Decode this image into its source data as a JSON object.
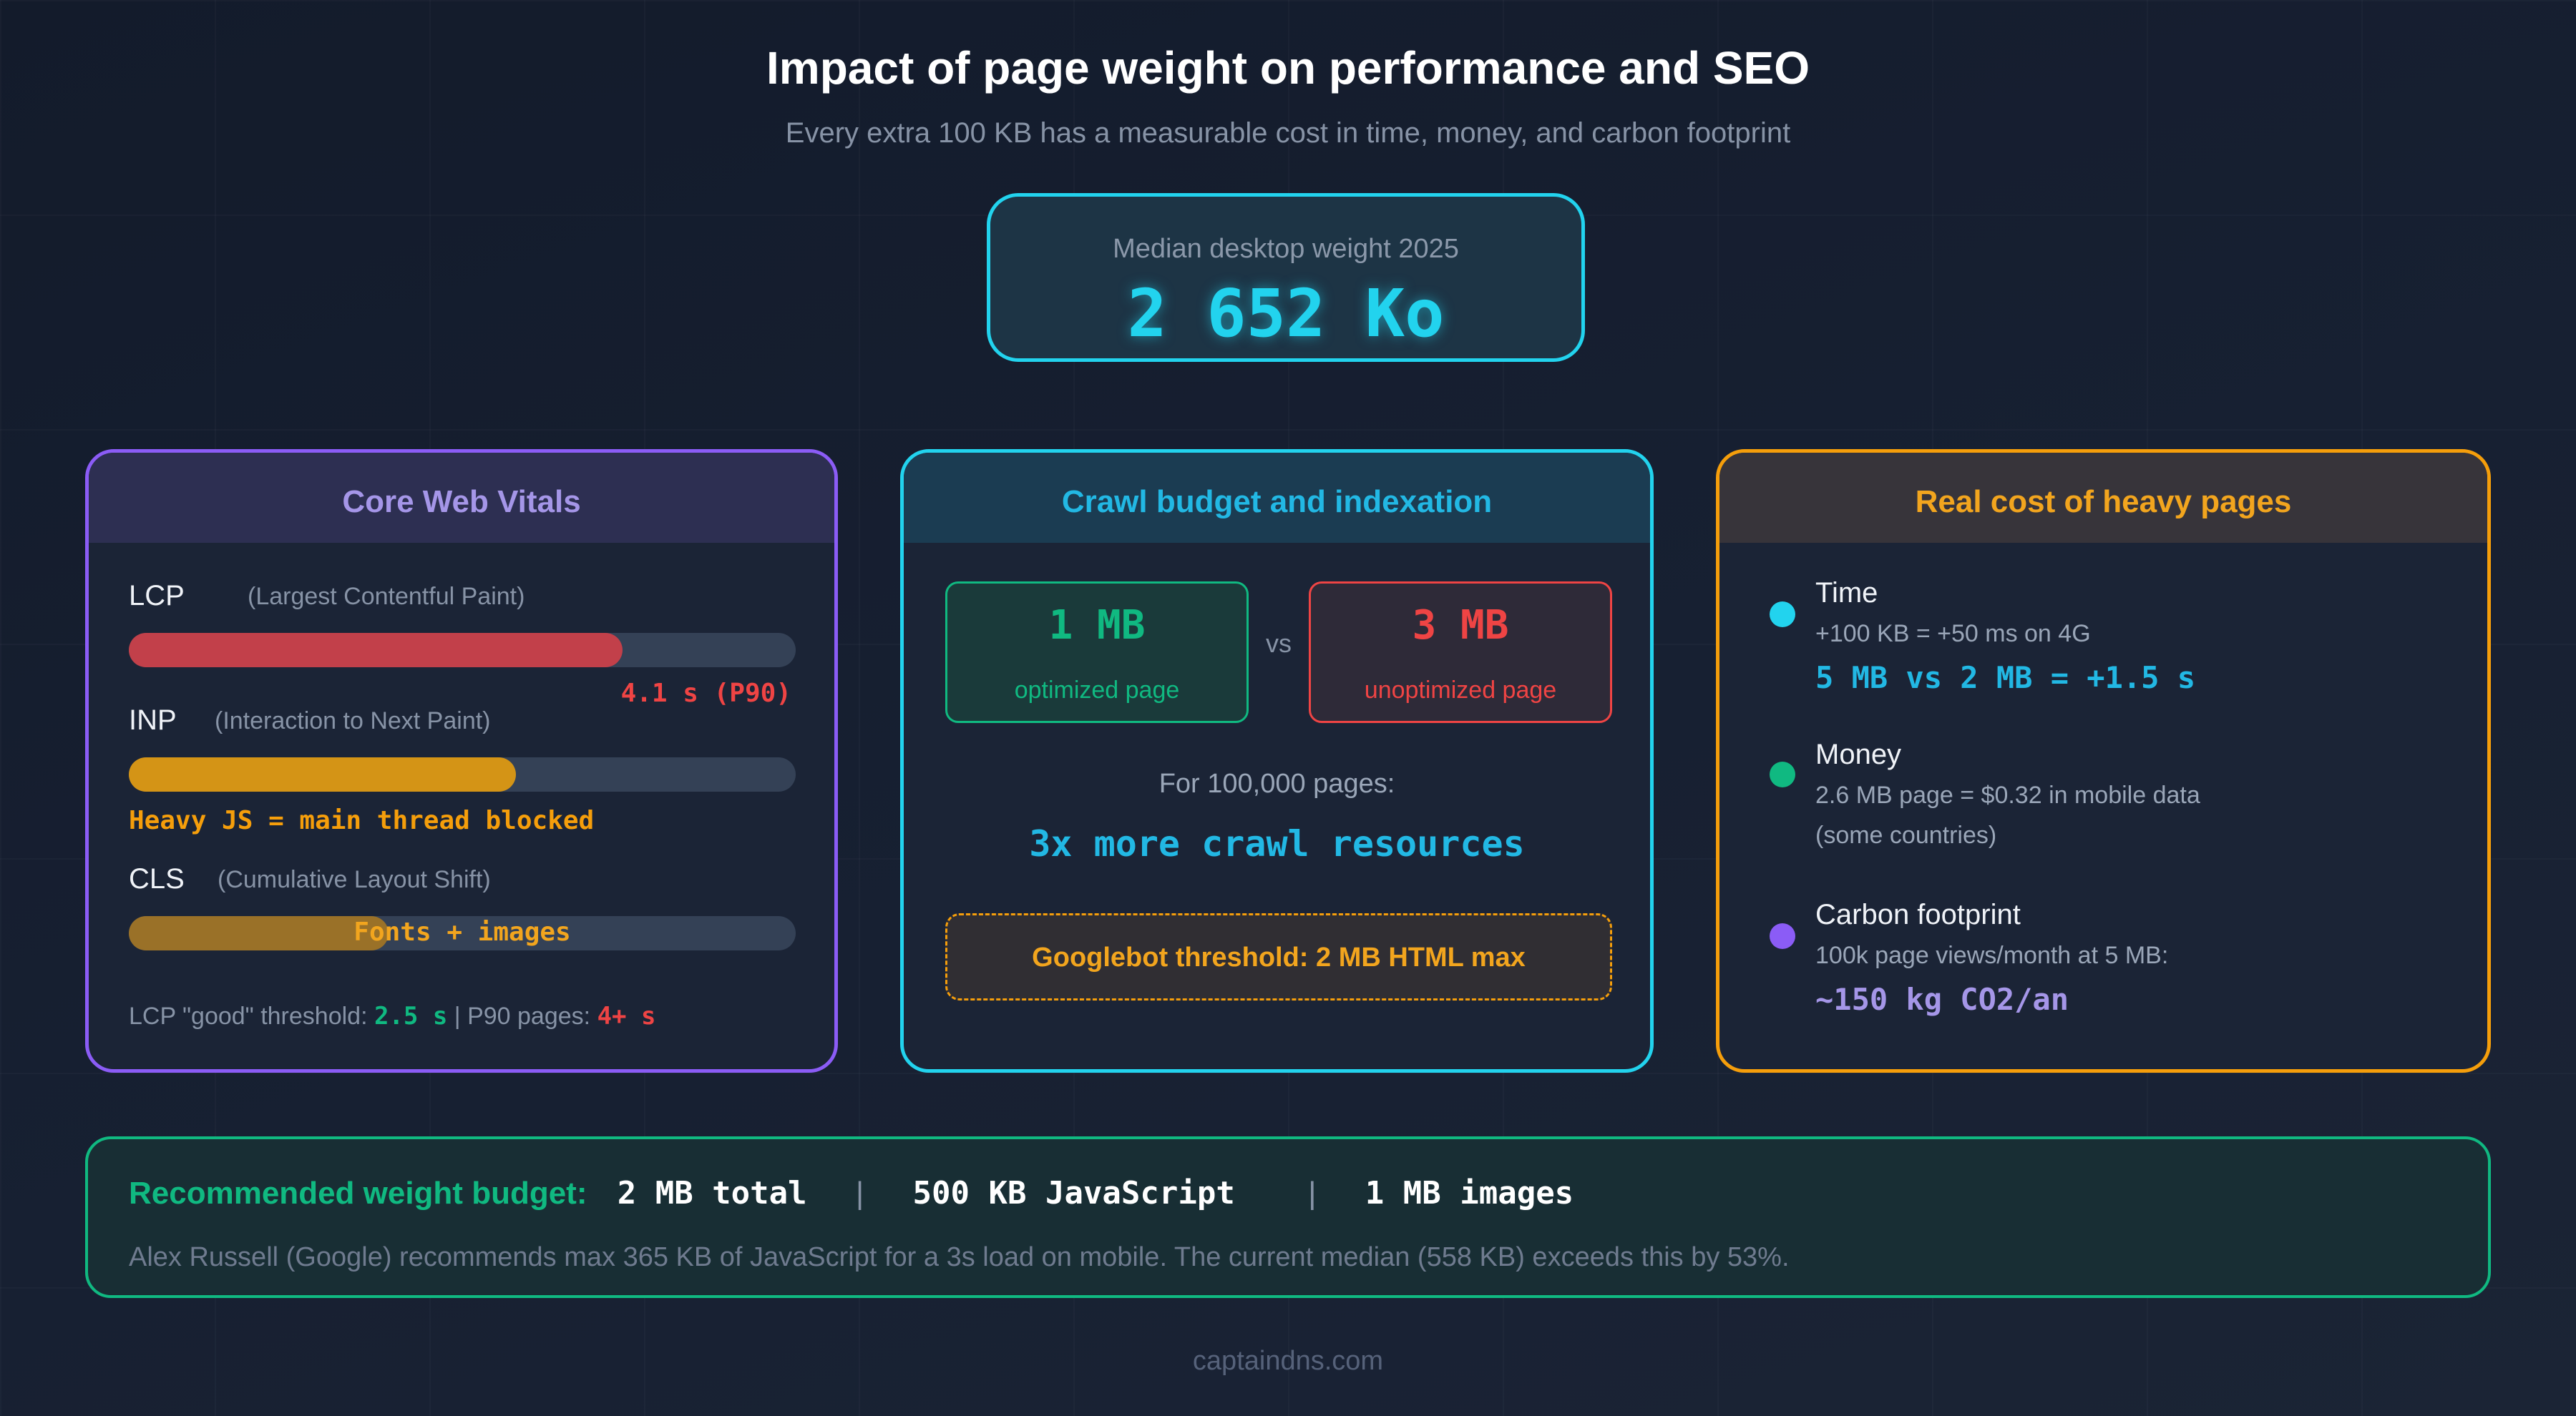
{
  "header": {
    "title": "Impact of page weight on performance and SEO",
    "subtitle": "Every extra 100 KB has a measurable cost in time, money, and carbon footprint"
  },
  "hero": {
    "label": "Median desktop weight 2025",
    "value": "2 652 Ko"
  },
  "core_web_vitals": {
    "title": "Core Web Vitals",
    "metrics": [
      {
        "name": "LCP",
        "desc": "(Largest Contentful Paint)",
        "note": "4.1 s (P90)",
        "fill": 0.74,
        "color": "#c2404a"
      },
      {
        "name": "INP",
        "desc": "(Interaction to Next Paint)",
        "note": "Heavy JS = main thread blocked",
        "fill": 0.58,
        "color": "#d49416"
      },
      {
        "name": "CLS",
        "desc": "(Cumulative Layout Shift)",
        "note": "Fonts + images",
        "fill": 0.39,
        "color": "#9a7128"
      }
    ],
    "footer": {
      "label1": "LCP \"good\" threshold:",
      "value1": "2.5 s",
      "sep": "|",
      "label2": "P90 pages:",
      "value2": "4+ s"
    }
  },
  "crawl": {
    "title": "Crawl budget and indexation",
    "optimized": {
      "value": "1 MB",
      "label": "optimized page",
      "color": "#10b981"
    },
    "vs": "vs",
    "unoptimized": {
      "value": "3 MB",
      "label": "unoptimized page",
      "color": "#ef4444"
    },
    "pages_label": "For 100,000 pages:",
    "result": "3x more crawl resources",
    "threshold": "Googlebot threshold: 2 MB HTML max"
  },
  "cost": {
    "title": "Real cost of heavy pages",
    "items": [
      {
        "title": "Time",
        "line1": "+100 KB = +50 ms on 4G",
        "line2": "",
        "highlight": "5 MB vs 2 MB = +1.5 s",
        "color": "#22d3ee",
        "hl_color": "#22b8e4"
      },
      {
        "title": "Money",
        "line1": "2.6 MB page = $0.32 in mobile data",
        "line2": "(some countries)",
        "highlight": "",
        "color": "#10b981",
        "hl_color": "#10b981"
      },
      {
        "title": "Carbon footprint",
        "line1": "100k page views/month at 5 MB:",
        "line2": "",
        "highlight": "~150 kg CO2/an",
        "color": "#8b5cf6",
        "hl_color": "#a596e8"
      }
    ]
  },
  "budget": {
    "label": "Recommended weight budget:",
    "item1": "2 MB total",
    "sep1": "|",
    "item2": "500 KB JavaScript",
    "sep2": "|",
    "item3": "1 MB images",
    "note": "Alex Russell (Google) recommends max 365 KB of JavaScript for a 3s load on mobile. The current median (558 KB) exceeds this by 53%."
  },
  "footer": {
    "site": "captaindns.com"
  },
  "colors": {
    "accent_cyan": "#22d3ee",
    "accent_purple": "#8b5cf6",
    "accent_orange": "#f59e0b",
    "accent_green": "#10b981",
    "accent_red": "#ef4444"
  }
}
